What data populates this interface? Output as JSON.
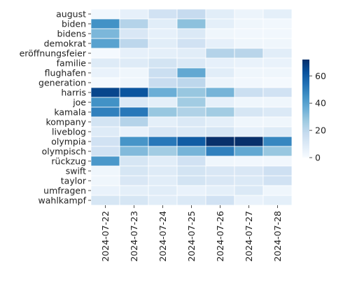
{
  "chart_data": {
    "type": "heatmap",
    "title": "",
    "xlabel": "",
    "ylabel": "",
    "x": [
      "2024-07-22",
      "2024-07-23",
      "2024-07-24",
      "2024-07-25",
      "2024-07-26",
      "2024-07-27",
      "2024-07-28"
    ],
    "y": [
      "august",
      "biden",
      "bidens",
      "demokrat",
      "eröffnungsfeier",
      "familie",
      "flughafen",
      "generation",
      "harris",
      "joe",
      "kamala",
      "kompany",
      "liveblog",
      "olympia",
      "olympisch",
      "rückzug",
      "swift",
      "taylor",
      "umfragen",
      "wahlkampf"
    ],
    "values": [
      [
        2,
        6,
        14,
        18,
        8,
        4,
        7
      ],
      [
        45,
        22,
        8,
        30,
        7,
        3,
        2
      ],
      [
        33,
        11,
        6,
        10,
        3,
        2,
        2
      ],
      [
        40,
        20,
        8,
        14,
        6,
        3,
        3
      ],
      [
        1,
        6,
        7,
        8,
        22,
        21,
        8
      ],
      [
        9,
        9,
        13,
        10,
        6,
        5,
        5
      ],
      [
        5,
        3,
        16,
        38,
        8,
        3,
        3
      ],
      [
        1,
        3,
        17,
        20,
        4,
        2,
        1
      ],
      [
        66,
        62,
        36,
        28,
        34,
        16,
        14
      ],
      [
        45,
        10,
        7,
        26,
        6,
        3,
        3
      ],
      [
        50,
        52,
        28,
        23,
        26,
        12,
        10
      ],
      [
        13,
        22,
        7,
        10,
        7,
        3,
        3
      ],
      [
        9,
        5,
        11,
        10,
        12,
        6,
        9
      ],
      [
        14,
        44,
        52,
        60,
        72,
        72,
        48
      ],
      [
        14,
        32,
        26,
        34,
        50,
        38,
        28
      ],
      [
        43,
        12,
        8,
        14,
        3,
        2,
        2
      ],
      [
        3,
        12,
        9,
        13,
        11,
        11,
        15
      ],
      [
        3,
        11,
        8,
        13,
        11,
        10,
        14
      ],
      [
        5,
        7,
        8,
        5,
        7,
        10,
        3
      ],
      [
        12,
        12,
        8,
        10,
        14,
        5,
        7
      ]
    ],
    "colorbar": {
      "min": 0,
      "max": 72,
      "ticks": [
        0,
        20,
        40,
        60
      ]
    },
    "colorscale": [
      "#f7fbff",
      "#deebf7",
      "#c6dbef",
      "#9ecae1",
      "#6baed6",
      "#4292c6",
      "#2171b5",
      "#08519c",
      "#08306b"
    ],
    "grid": false,
    "legend": "colorbar right"
  }
}
